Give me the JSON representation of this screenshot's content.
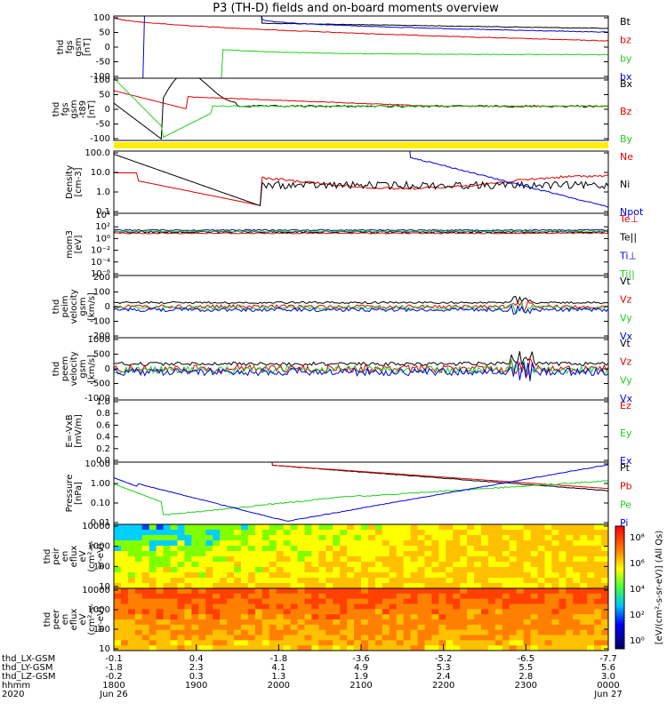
{
  "title": "P3 (TH-D) fields and on-board moments overview",
  "colors": {
    "black": "#000000",
    "red": "#dd0000",
    "green": "#22cc22",
    "blue": "#0000dd",
    "yellow": "#ffee00"
  },
  "chart_data": [
    {
      "type": "line",
      "panel": "fgs",
      "ylabel": [
        "thd",
        "fgs",
        "gsm",
        "[nT]"
      ],
      "yticks": [
        "100",
        "50",
        "0",
        "-50",
        "-100"
      ],
      "ylim": [
        -100,
        100
      ],
      "series": [
        {
          "name": "Bt",
          "color": "black"
        },
        {
          "name": "bz",
          "color": "red"
        },
        {
          "name": "by",
          "color": "green"
        },
        {
          "name": "bx",
          "color": "blue"
        }
      ]
    },
    {
      "type": "line",
      "panel": "fgs-dc",
      "ylabel": [
        "thd",
        "fgs",
        "gsm",
        "-t89",
        "[nT]"
      ],
      "yticks": [
        "100",
        "50",
        "0",
        "-50",
        "-100"
      ],
      "ylim": [
        -125,
        110
      ],
      "series": [
        {
          "name": "Bx",
          "color": "black"
        },
        {
          "name": "Bz",
          "color": "red"
        },
        {
          "name": "By",
          "color": "green"
        }
      ]
    },
    {
      "type": "line",
      "panel": "density",
      "log": true,
      "ylabel": [
        "Density",
        "[cm-3]"
      ],
      "yticks": [
        "100.0",
        "10.0",
        "1.0",
        "0.1"
      ],
      "series": [
        {
          "name": "Ne",
          "color": "red"
        },
        {
          "name": "Ni",
          "color": "black"
        },
        {
          "name": "Npot",
          "color": "blue"
        }
      ]
    },
    {
      "type": "line",
      "panel": "temperature",
      "log": true,
      "ylabel": [
        "mom3",
        "[eV]"
      ],
      "yticks": [
        "10⁴",
        "10²",
        "10⁰",
        "10⁻²",
        "10⁻⁴",
        "10⁻⁶"
      ],
      "series": [
        {
          "name": "Te⊥",
          "color": "red"
        },
        {
          "name": "Te||",
          "color": "black"
        },
        {
          "name": "Ti⊥",
          "color": "blue"
        },
        {
          "name": "Ti||",
          "color": "green"
        }
      ]
    },
    {
      "type": "line",
      "panel": "peim-velocity",
      "ylabel": [
        "thd",
        "peim",
        "velocity",
        "gsm",
        "[km/s]"
      ],
      "yticks": [
        "200",
        "100",
        "0",
        "-100",
        "-200"
      ],
      "ylim": [
        -200,
        200
      ],
      "series": [
        {
          "name": "Vt",
          "color": "black"
        },
        {
          "name": "Vz",
          "color": "red"
        },
        {
          "name": "Vy",
          "color": "green"
        },
        {
          "name": "Vx",
          "color": "blue"
        }
      ]
    },
    {
      "type": "line",
      "panel": "peem-velocity",
      "ylabel": [
        "thd",
        "peem",
        "velocity",
        "gsm",
        "[km/s]"
      ],
      "yticks": [
        "1000",
        "500",
        "0",
        "-500",
        "-1000"
      ],
      "ylim": [
        -1000,
        1000
      ],
      "series": [
        {
          "name": "Vt",
          "color": "black"
        },
        {
          "name": "Vz",
          "color": "red"
        },
        {
          "name": "Vy",
          "color": "green"
        },
        {
          "name": "Vx",
          "color": "blue"
        }
      ]
    },
    {
      "type": "line",
      "panel": "efield",
      "ylabel": [
        "E=-VxB",
        "[mV/m]"
      ],
      "yticks": [
        "1.0",
        "0.8",
        "0.6",
        "0.4",
        "0.2",
        "0.0"
      ],
      "ylim": [
        0,
        1
      ],
      "series": [
        {
          "name": "Ez",
          "color": "red"
        },
        {
          "name": "Ey",
          "color": "green"
        },
        {
          "name": "Ex",
          "color": "blue"
        }
      ]
    },
    {
      "type": "line",
      "panel": "pressure",
      "log": true,
      "ylabel": [
        "Pressure",
        "[nPa]"
      ],
      "yticks": [
        "10.00",
        "1.00",
        "0.10",
        "0.01"
      ],
      "series": [
        {
          "name": "Pt",
          "color": "black"
        },
        {
          "name": "Pb",
          "color": "red"
        },
        {
          "name": "Pe",
          "color": "green"
        },
        {
          "name": "Pi",
          "color": "blue"
        }
      ]
    },
    {
      "type": "heatmap",
      "panel": "peir",
      "ylabel": [
        "thd",
        "peir",
        "en",
        "eflux",
        "eV",
        "(cm²-s-",
        "sr-eV)"
      ],
      "yticks": [
        "10000",
        "1000",
        "100",
        "10"
      ]
    },
    {
      "type": "heatmap",
      "panel": "peer",
      "ylabel": [
        "thd",
        "peer",
        "en",
        "eflux",
        "eV",
        "(cm²-s-",
        "sr-eV)"
      ],
      "yticks": [
        "10000",
        "1000",
        "100",
        "10"
      ]
    }
  ],
  "colorbar": {
    "label": "[eV/(cm²-s-sr-eV)] (All Qs)",
    "ticks": [
      "10⁸",
      "10⁶",
      "10⁴",
      "10²",
      "10⁰"
    ]
  },
  "xaxis": {
    "rows": [
      {
        "label": "thd_LX-GSM",
        "values": [
          "-0.1",
          "0.4",
          "-1.8",
          "-3.6",
          "-5.2",
          "-6.5",
          "-7.7"
        ]
      },
      {
        "label": "thd_LY-GSM",
        "values": [
          "-1.8",
          "2.3",
          "4.1",
          "4.9",
          "5.3",
          "5.5",
          "5.6"
        ]
      },
      {
        "label": "thd_LZ-GSM",
        "values": [
          "-0.2",
          "0.3",
          "1.3",
          "1.9",
          "2.4",
          "2.8",
          "3.0"
        ]
      },
      {
        "label": "hhmm",
        "values": [
          "1800",
          "1900",
          "2000",
          "2100",
          "2200",
          "2300",
          "0000"
        ]
      },
      {
        "label": "2020",
        "values": [
          "Jun 26",
          "",
          "",
          "",
          "",
          "",
          "Jun 27"
        ]
      }
    ]
  }
}
